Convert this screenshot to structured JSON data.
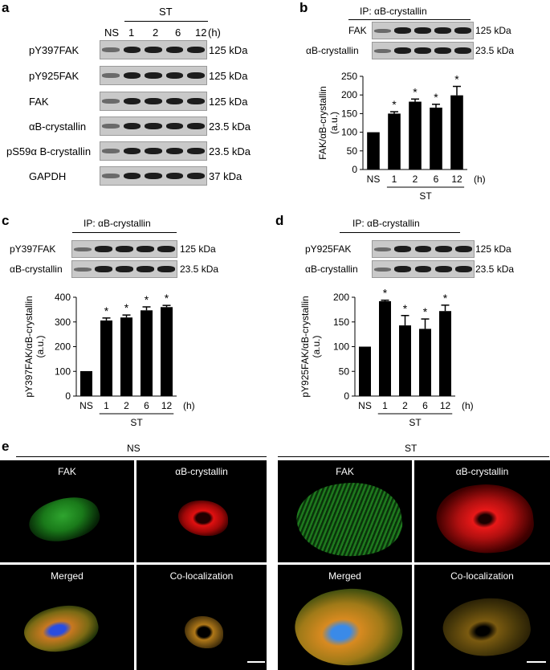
{
  "panel_a": {
    "label": "a",
    "treatment_header": "ST",
    "lanes": [
      "NS",
      "1",
      "2",
      "6",
      "12"
    ],
    "unit": "(h)",
    "rows": [
      {
        "name": "pY397FAK",
        "kda": "125 kDa"
      },
      {
        "name": "pY925FAK",
        "kda": "125 kDa"
      },
      {
        "name": "FAK",
        "kda": "125 kDa"
      },
      {
        "name": "αB-crystallin",
        "kda": "23.5 kDa"
      },
      {
        "name": "pS59α B-crystallin",
        "kda": "23.5 kDa"
      },
      {
        "name": "GAPDH",
        "kda": "37 kDa"
      }
    ]
  },
  "panel_b": {
    "label": "b",
    "ip_header": "IP: αB-crystallin",
    "blot_rows": [
      {
        "name": "FAK",
        "kda": "125 kDa"
      },
      {
        "name": "αB-crystallin",
        "kda": "23.5 kDa"
      }
    ],
    "group_label": "ST",
    "unit": "(h)"
  },
  "panel_c": {
    "label": "c",
    "ip_header": "IP: αB-crystallin",
    "blot_rows": [
      {
        "name": "pY397FAK",
        "kda": "125 kDa"
      },
      {
        "name": "αB-crystallin",
        "kda": "23.5 kDa"
      }
    ],
    "group_label": "ST",
    "unit": "(h)"
  },
  "panel_d": {
    "label": "d",
    "ip_header": "IP: αB-crystallin",
    "blot_rows": [
      {
        "name": "pY925FAK",
        "kda": "125 kDa"
      },
      {
        "name": "αB-crystallin",
        "kda": "23.5 kDa"
      }
    ],
    "group_label": "ST",
    "unit": "(h)"
  },
  "panel_e": {
    "label": "e",
    "groups": [
      {
        "title": "NS",
        "tiles": [
          "FAK",
          "αB-crystallin",
          "Merged",
          "Co-localization"
        ]
      },
      {
        "title": "ST",
        "tiles": [
          "FAK",
          "αB-crystallin",
          "Merged",
          "Co-localization"
        ]
      }
    ]
  },
  "chart_data": [
    {
      "panel": "b",
      "type": "bar",
      "categories": [
        "NS",
        "1",
        "2",
        "6",
        "12"
      ],
      "values": [
        100,
        150,
        182,
        166,
        199
      ],
      "errors": [
        0,
        5,
        7,
        9,
        24
      ],
      "significant": [
        false,
        true,
        true,
        true,
        true
      ],
      "significance_mark": "*",
      "ylabel": "FAK/αB-crystallin (a.u.)",
      "ylim": [
        0,
        250
      ],
      "yticks": [
        0,
        50,
        100,
        150,
        200,
        250
      ]
    },
    {
      "panel": "c",
      "type": "bar",
      "categories": [
        "NS",
        "1",
        "2",
        "6",
        "12"
      ],
      "values": [
        101,
        306,
        318,
        347,
        360
      ],
      "errors": [
        0,
        10,
        10,
        14,
        7
      ],
      "significant": [
        false,
        true,
        true,
        true,
        true
      ],
      "significance_mark": "*",
      "ylabel": "pY397FAK/αB-crystallin (a.u.)",
      "ylim": [
        0,
        400
      ],
      "yticks": [
        0,
        100,
        200,
        300,
        400
      ]
    },
    {
      "panel": "d",
      "type": "bar",
      "categories": [
        "NS",
        "1",
        "2",
        "6",
        "12"
      ],
      "values": [
        100,
        192,
        143,
        136,
        172
      ],
      "errors": [
        0,
        2,
        20,
        20,
        12
      ],
      "significant": [
        false,
        true,
        true,
        true,
        true
      ],
      "significance_mark": "*",
      "ylabel": "pY925FAK/αB-crystallin (a.u.)",
      "ylim": [
        0,
        200
      ],
      "yticks": [
        0,
        50,
        100,
        150,
        200
      ]
    }
  ]
}
